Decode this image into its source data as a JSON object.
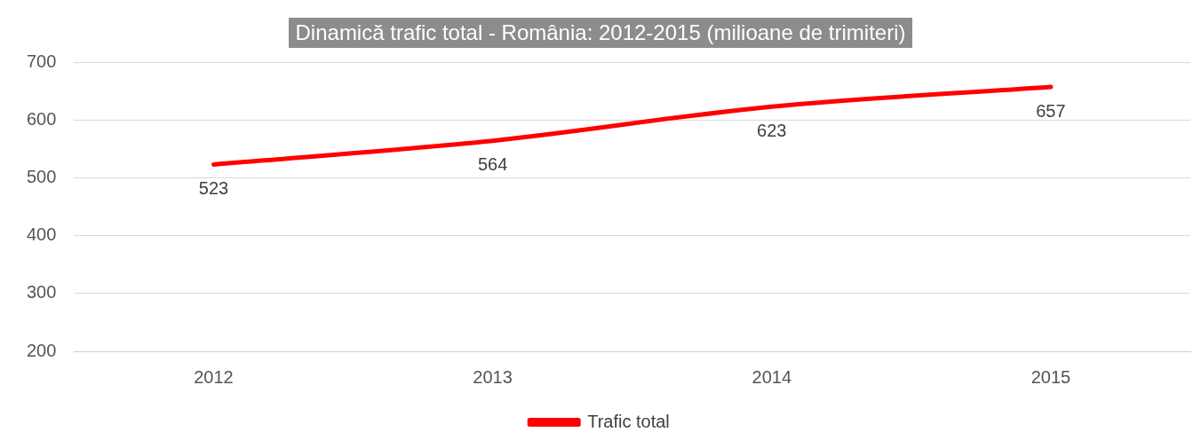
{
  "chart_data": {
    "type": "line",
    "title": "Dinamică trafic total - România: 2012-2015 (milioane de trimiteri)",
    "categories": [
      "2012",
      "2013",
      "2014",
      "2015"
    ],
    "series": [
      {
        "name": "Trafic total",
        "color": "#ff0000",
        "values": [
          523,
          564,
          623,
          657
        ]
      }
    ],
    "ylim": [
      200,
      700
    ],
    "yticks": [
      200,
      300,
      400,
      500,
      600,
      700
    ],
    "grid": "y",
    "legend": "bottom",
    "data_labels": true,
    "marker": "none",
    "line_style": "solid"
  }
}
